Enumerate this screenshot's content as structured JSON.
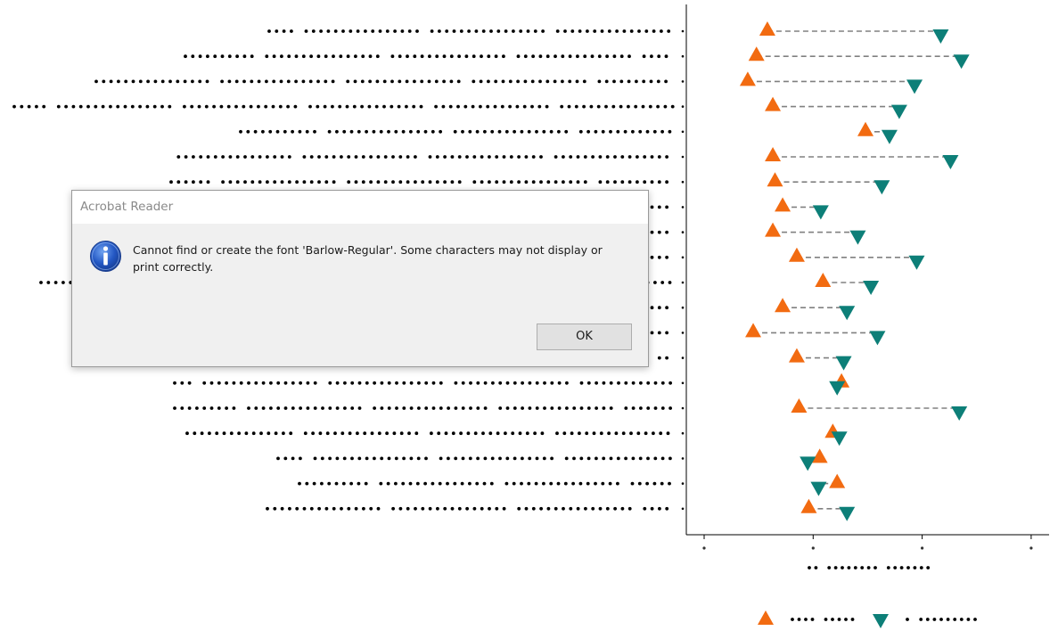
{
  "dialog": {
    "title": "Acrobat Reader",
    "message": "Cannot find or create the font 'Barlow-Regular'. Some characters may not display or print correctly.",
    "ok_label": "OK",
    "icon": "info-icon"
  },
  "colors": {
    "start_marker": "#f26b11",
    "end_marker": "#0d7f78",
    "connector": "#808080",
    "axis": "#000000",
    "dialog_bg": "#f0f0f0"
  },
  "chart_data": {
    "type": "dumbbell",
    "title": "",
    "xlabel": "",
    "ylabel": "",
    "categories": [
      "",
      "",
      "",
      "",
      "",
      "",
      "",
      "",
      "",
      "",
      "",
      "",
      "",
      "",
      "",
      "",
      "",
      "",
      "",
      ""
    ],
    "series": [
      {
        "marker": "triangle-up",
        "values": [
          0.58,
          0.48,
          0.4,
          0.63,
          1.48,
          0.63,
          0.65,
          0.72,
          0.63,
          0.85,
          1.09,
          0.72,
          0.45,
          0.85,
          1.26,
          0.87,
          1.18,
          1.06,
          1.22,
          0.96
        ]
      },
      {
        "marker": "triangle-down",
        "values": [
          2.17,
          2.36,
          1.93,
          1.79,
          1.7,
          2.26,
          1.63,
          1.07,
          1.41,
          1.95,
          1.53,
          1.31,
          1.59,
          1.28,
          1.22,
          2.34,
          1.24,
          0.95,
          1.05,
          1.31
        ]
      }
    ],
    "x_ticks": [
      0,
      1,
      2,
      3
    ],
    "xlim": [
      -0.15,
      3.15
    ],
    "grid": false
  }
}
